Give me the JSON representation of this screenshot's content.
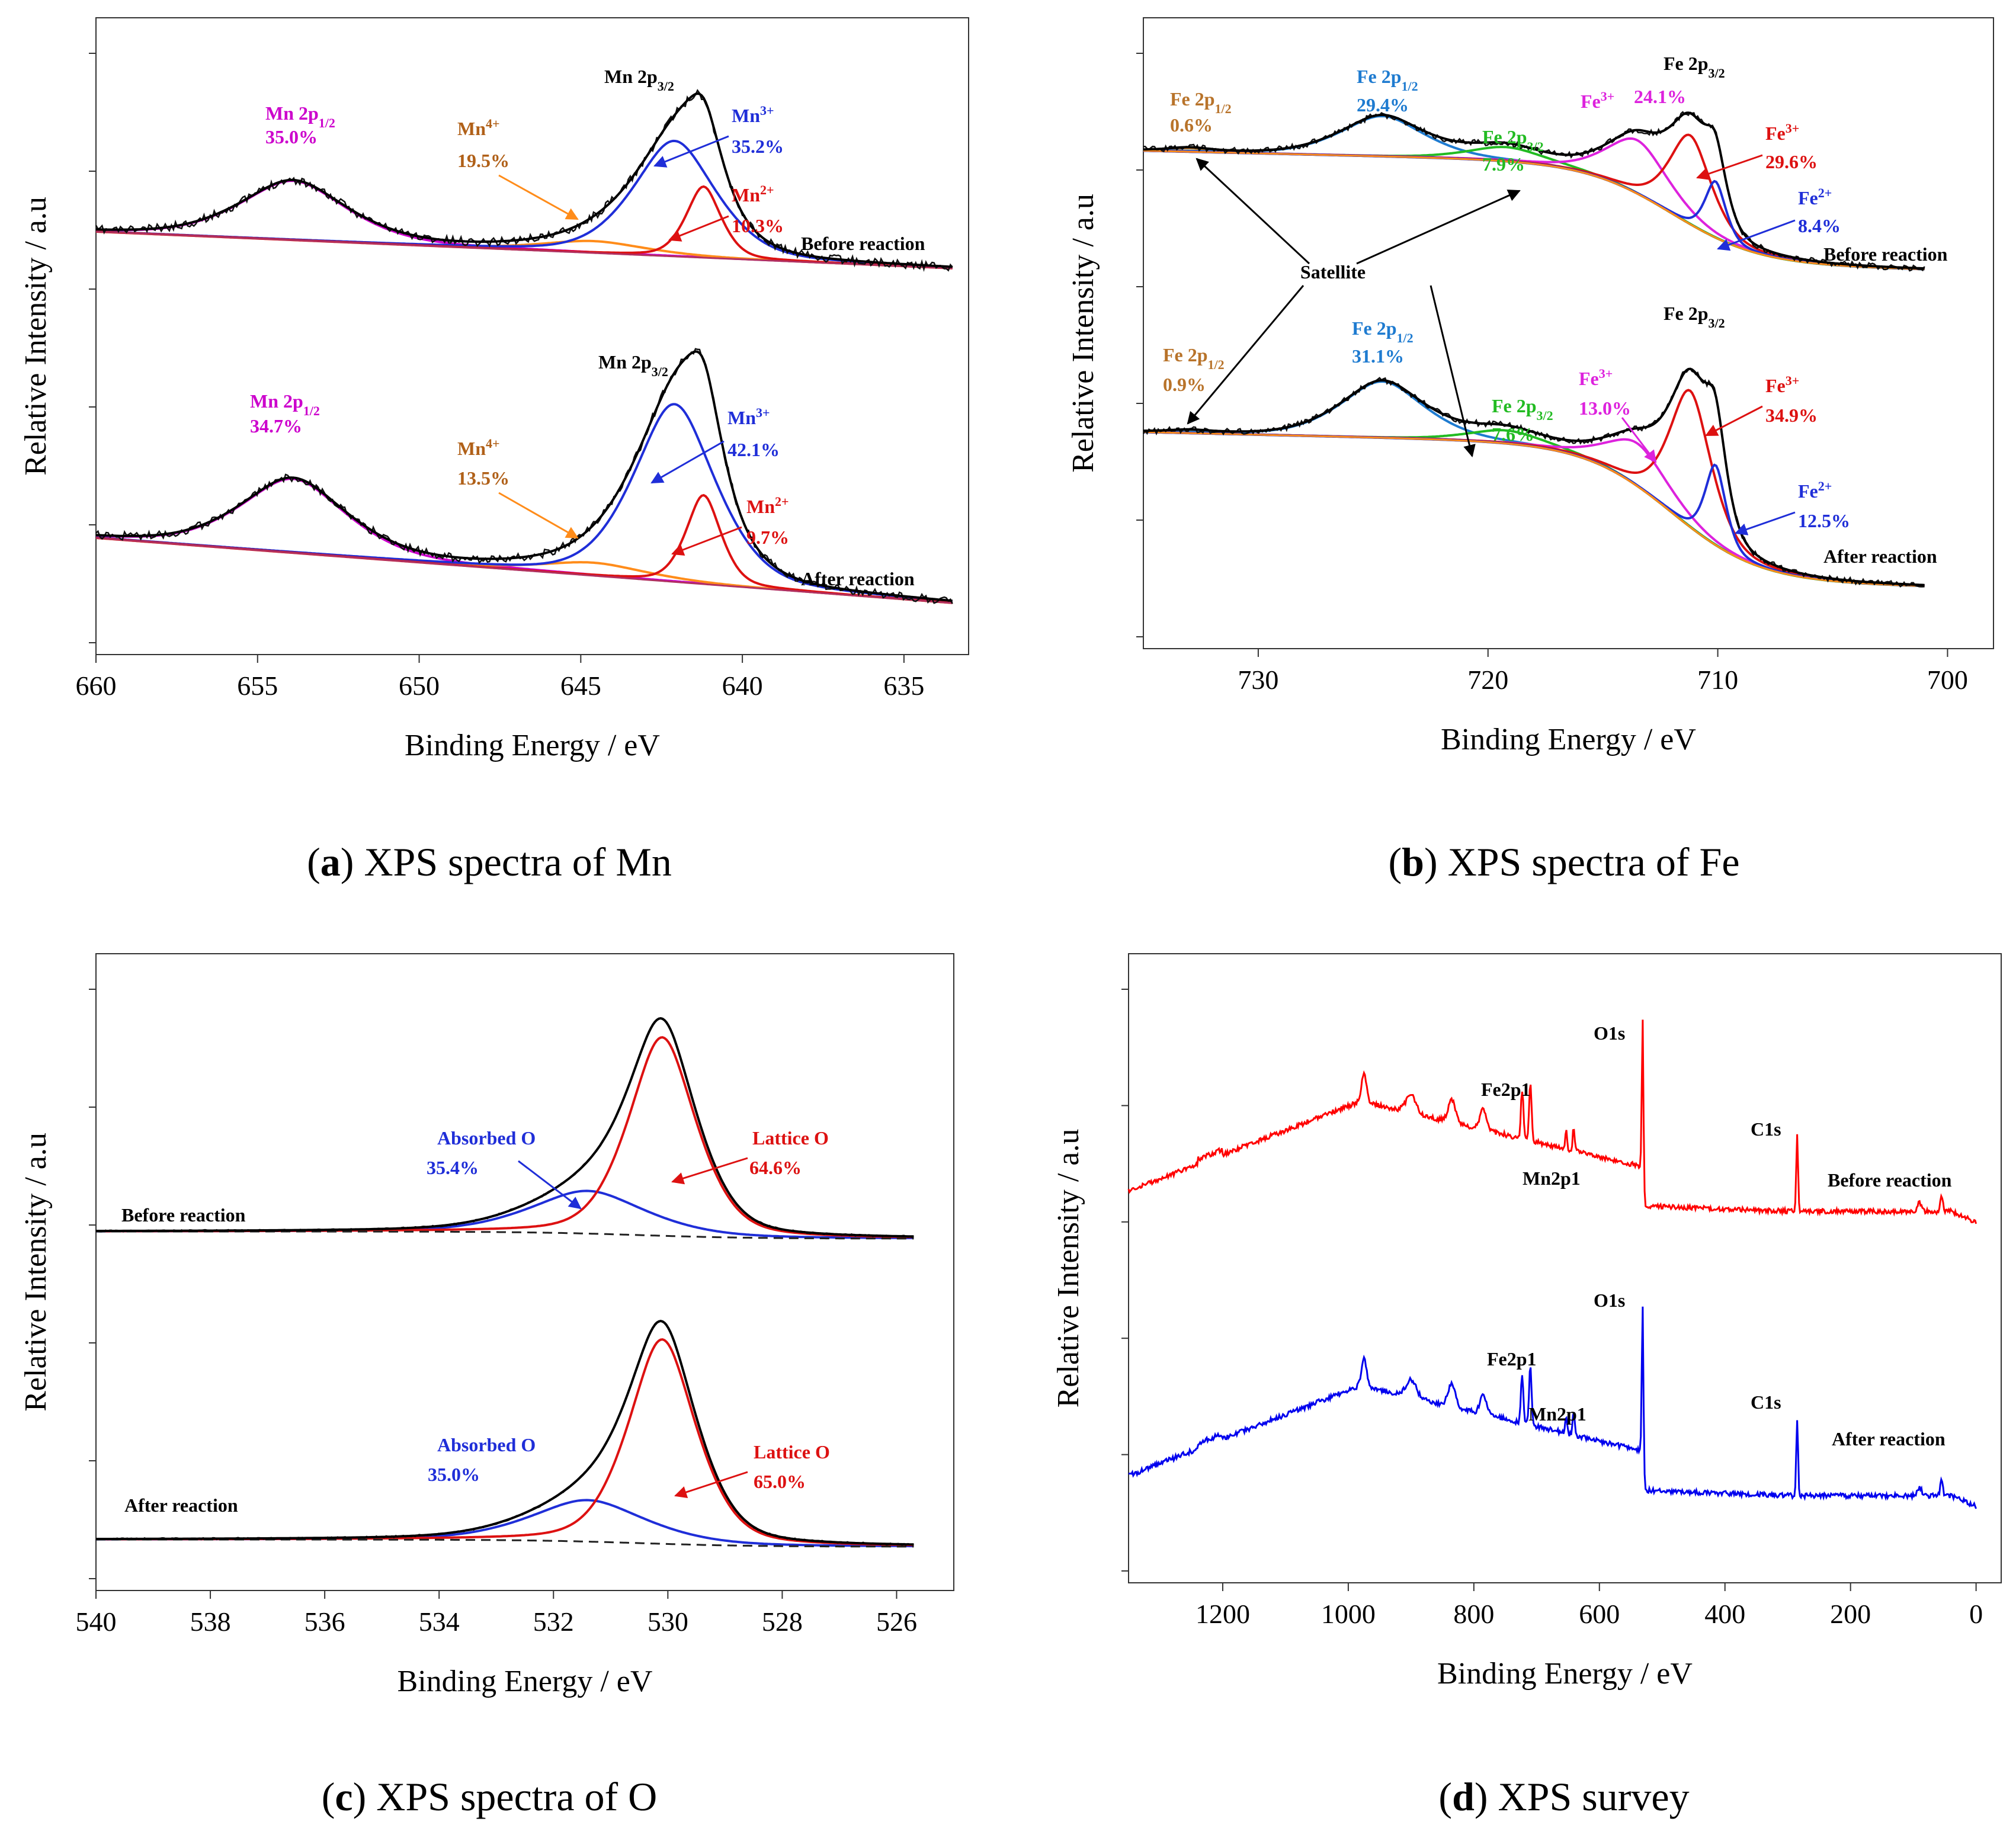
{
  "figure": {
    "captions": [
      {
        "letter": "a",
        "text": ") XPS spectra of Mn"
      },
      {
        "letter": "b",
        "text": ") XPS spectra of Fe"
      },
      {
        "letter": "c",
        "text": ") XPS spectra of O"
      },
      {
        "letter": "d",
        "text": ") XPS survey"
      }
    ]
  },
  "chart_data": [
    {
      "id": "mn",
      "type": "line",
      "title": "XPS spectra of Mn",
      "xlabel": "Binding Energy / eV",
      "ylabel": "Relative Intensity / a.u",
      "xlim": [
        660,
        633
      ],
      "xticks": [
        660,
        655,
        650,
        645,
        640,
        635
      ],
      "annotations": {
        "before_label": "Before reaction",
        "after_label": "After reaction",
        "before": [
          {
            "text": "Mn 2p3/2"
          },
          {
            "text": "Mn 2p1/2",
            "value": "35.0%"
          },
          {
            "text": "Mn4+",
            "value": "19.5%"
          },
          {
            "text": "Mn3+",
            "value": "35.2%"
          },
          {
            "text": "Mn2+",
            "value": "10.3%"
          }
        ],
        "after": [
          {
            "text": "Mn 2p3/2"
          },
          {
            "text": "Mn 2p1/2",
            "value": "34.7%"
          },
          {
            "text": "Mn4+",
            "value": "13.5%"
          },
          {
            "text": "Mn3+",
            "value": "42.1%"
          },
          {
            "text": "Mn2+",
            "value": "9.7%"
          }
        ]
      },
      "components": {
        "Mn 2p1/2": {
          "color": "#cc00cc",
          "center": 653.9,
          "width": 1.8
        },
        "Mn4+": {
          "color": "#ff8c1a",
          "center": 644.6,
          "width": 1.8
        },
        "Mn3+": {
          "color": "#1f2ed8",
          "center": 642.1,
          "width": 1.4
        },
        "Mn2+": {
          "color": "#dd1111",
          "center": 641.2,
          "width": 0.6
        }
      }
    },
    {
      "id": "fe",
      "type": "line",
      "title": "XPS spectra of Fe",
      "xlabel": "Binding Energy / eV",
      "ylabel": "Relative Intensity / a.u",
      "xlim": [
        735,
        698
      ],
      "xticks": [
        730,
        720,
        710,
        700
      ],
      "annotations": {
        "satellite": "Satellite",
        "before_label": "Before reaction",
        "after_label": "After reaction",
        "before": [
          {
            "text": "Fe 2p3/2"
          },
          {
            "text": "Fe 2p1/2",
            "value": "0.6%"
          },
          {
            "text": "Fe 2p1/2",
            "value": "29.4%"
          },
          {
            "text": "Fe 2p3/2",
            "value": "7.9%"
          },
          {
            "text": "Fe3+",
            "value": "24.1%"
          },
          {
            "text": "Fe3+",
            "value": "29.6%"
          },
          {
            "text": "Fe2+",
            "value": "8.4%"
          }
        ],
        "after": [
          {
            "text": "Fe 2p3/2"
          },
          {
            "text": "Fe 2p1/2",
            "value": "0.9%"
          },
          {
            "text": "Fe 2p1/2",
            "value": "31.1%"
          },
          {
            "text": "Fe 2p3/2",
            "value": "7.6%"
          },
          {
            "text": "Fe3+",
            "value": "13.0%"
          },
          {
            "text": "Fe3+",
            "value": "34.9%"
          },
          {
            "text": "Fe2+",
            "value": "12.5%"
          }
        ]
      },
      "components": {
        "Fe 2p1/2 satellite": {
          "color": "#b8732a",
          "center": 733,
          "width": 1.0
        },
        "Fe 2p1/2": {
          "color": "#1e7bd0",
          "center": 724.6,
          "width": 2.0
        },
        "Fe 2p3/2 satellite": {
          "color": "#22bb22",
          "center": 719.2,
          "width": 1.8
        },
        "Fe3+ (a)": {
          "color": "#dd22dd",
          "center": 713.5,
          "width": 1.5
        },
        "Fe3+ (b)": {
          "color": "#dd1111",
          "center": 711.2,
          "width": 1.0
        },
        "Fe2+": {
          "color": "#1f2ed8",
          "center": 710.1,
          "width": 0.5
        }
      }
    },
    {
      "id": "o",
      "type": "line",
      "title": "XPS spectra of O",
      "xlabel": "Binding Energy / eV",
      "ylabel": "Relative Intensity / a.u",
      "xlim": [
        540,
        525
      ],
      "xticks": [
        540,
        538,
        536,
        534,
        532,
        530,
        528,
        526
      ],
      "annotations": {
        "before_label": "Before reaction",
        "after_label": "After reaction",
        "before": [
          {
            "text": "Absorbed O",
            "value": "35.4%"
          },
          {
            "text": "Lattice O",
            "value": "64.6%"
          }
        ],
        "after": [
          {
            "text": "Absorbed O",
            "value": "35.0%"
          },
          {
            "text": "Lattice O",
            "value": "65.0%"
          }
        ]
      },
      "components": {
        "Absorbed O": {
          "color": "#1f2ed8",
          "center": 531.4,
          "width": 1.1
        },
        "Lattice O": {
          "color": "#dd1111",
          "center": 530.1,
          "width": 0.65
        }
      }
    },
    {
      "id": "survey",
      "type": "line",
      "title": "XPS survey",
      "xlabel": "Binding Energy / eV",
      "ylabel": "Relative Intensity / a.u",
      "xlim": [
        1350,
        -40
      ],
      "xticks": [
        1200,
        1000,
        800,
        600,
        400,
        200,
        0
      ],
      "series": [
        {
          "name": "Before reaction",
          "color": "#ff0000"
        },
        {
          "name": "After reaction",
          "color": "#0000ee"
        }
      ],
      "peak_labels": [
        "Fe2p1",
        "Mn2p1",
        "O1s",
        "C1s"
      ]
    }
  ]
}
